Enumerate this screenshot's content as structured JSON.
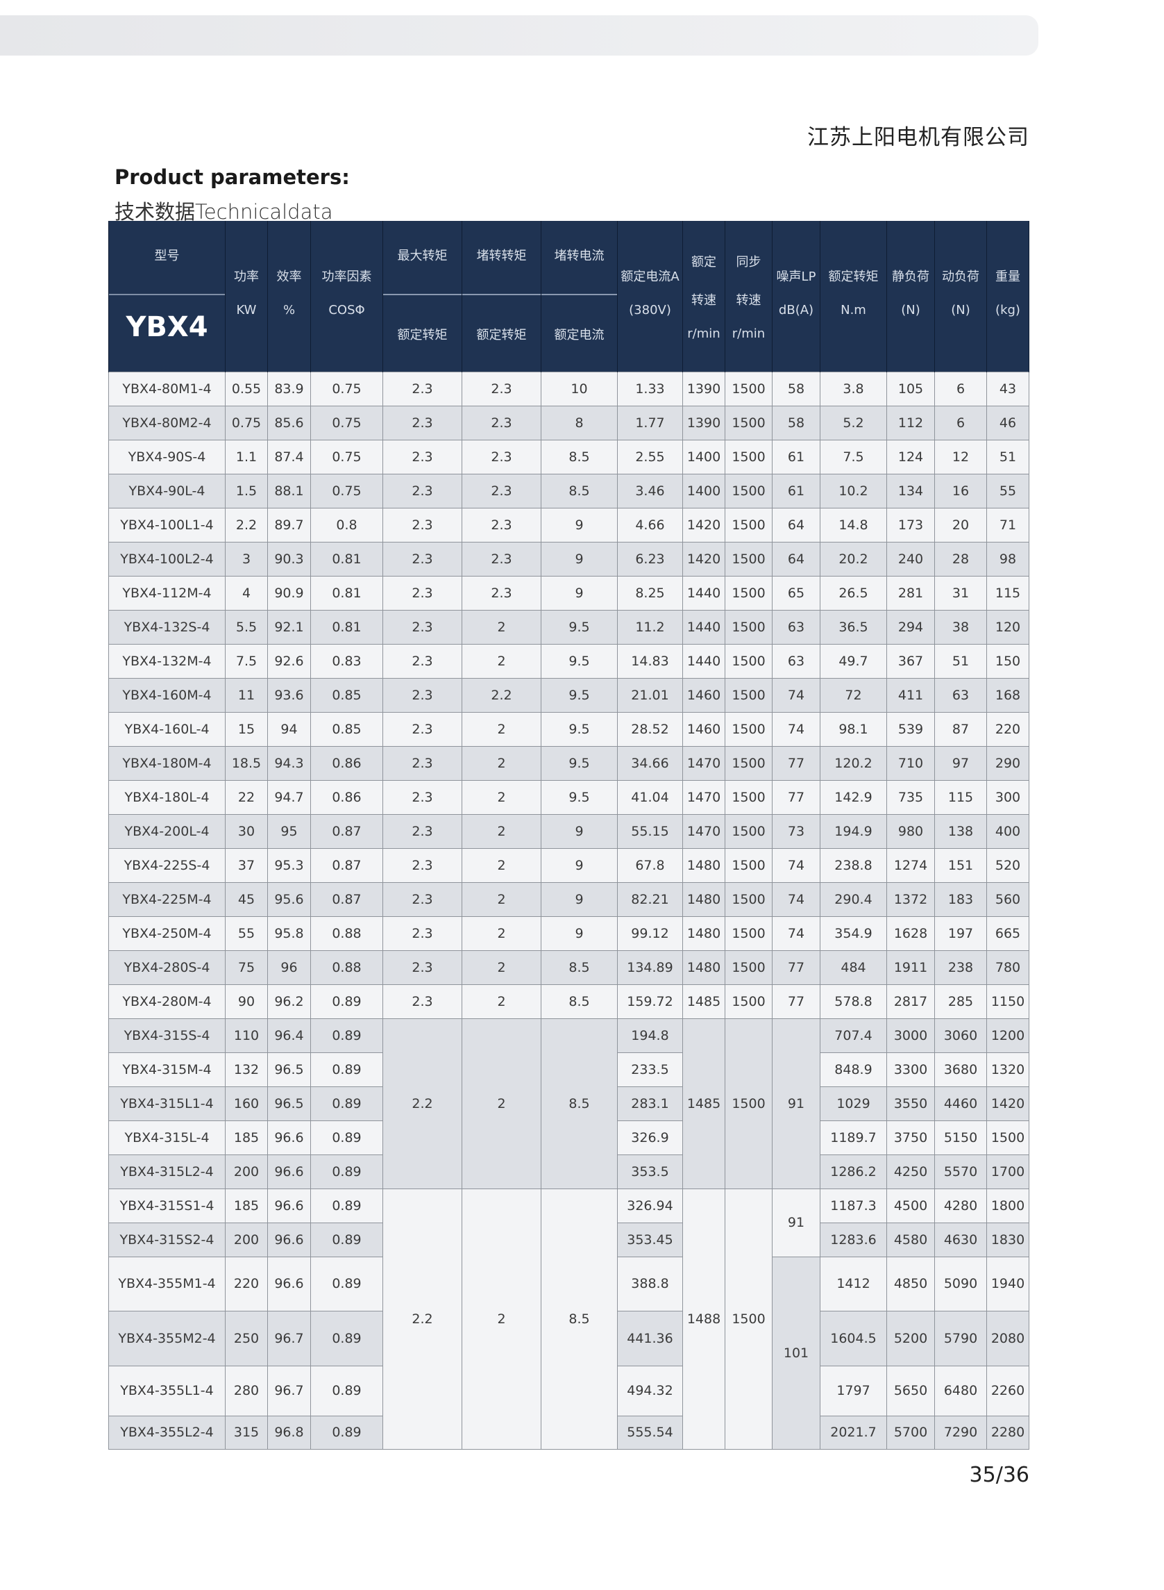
{
  "company": "江苏上阳电机有限公司",
  "title": "Product parameters:",
  "subtitle": "技术数据Technicaldata",
  "page_number": "35/36",
  "colors": {
    "header_bg": "#1f3352",
    "row_light": "#f3f4f6",
    "row_gray": "#dde0e5"
  },
  "header": {
    "model": "型号",
    "series": "YBX4",
    "kw": [
      "功率",
      "KW"
    ],
    "eff": [
      "效率",
      "%"
    ],
    "cos": [
      "功率因素",
      "COSΦ"
    ],
    "tmax": [
      "最大转矩",
      "额定转矩"
    ],
    "tlock": [
      "堵转转矩",
      "额定转矩"
    ],
    "ilock": [
      "堵转电流",
      "额定电流"
    ],
    "current": [
      "额定电流A",
      "(380V)"
    ],
    "speed": [
      "额定",
      "转速",
      "r/min"
    ],
    "sync": [
      "同步",
      "转速",
      "r/min"
    ],
    "noise": [
      "噪声LP",
      "dB(A)"
    ],
    "torque": [
      "额定转矩",
      "N.m"
    ],
    "static": [
      "静负荷",
      "(N)"
    ],
    "dynamic": [
      "动负荷",
      "(N)"
    ],
    "weight": [
      "重量",
      "(kg)"
    ]
  },
  "rows": [
    {
      "model": "YBX4-80M1-4",
      "kw": "0.55",
      "eff": "83.9",
      "cos": "0.75",
      "tmax": "2.3",
      "tlock": "2.3",
      "ilock": "10",
      "current": "1.33",
      "speed": "1390",
      "sync": "1500",
      "noise": "58",
      "torque": "3.8",
      "static": "105",
      "dynamic": "6",
      "weight": "43"
    },
    {
      "model": "YBX4-80M2-4",
      "kw": "0.75",
      "eff": "85.6",
      "cos": "0.75",
      "tmax": "2.3",
      "tlock": "2.3",
      "ilock": "8",
      "current": "1.77",
      "speed": "1390",
      "sync": "1500",
      "noise": "58",
      "torque": "5.2",
      "static": "112",
      "dynamic": "6",
      "weight": "46"
    },
    {
      "model": "YBX4-90S-4",
      "kw": "1.1",
      "eff": "87.4",
      "cos": "0.75",
      "tmax": "2.3",
      "tlock": "2.3",
      "ilock": "8.5",
      "current": "2.55",
      "speed": "1400",
      "sync": "1500",
      "noise": "61",
      "torque": "7.5",
      "static": "124",
      "dynamic": "12",
      "weight": "51"
    },
    {
      "model": "YBX4-90L-4",
      "kw": "1.5",
      "eff": "88.1",
      "cos": "0.75",
      "tmax": "2.3",
      "tlock": "2.3",
      "ilock": "8.5",
      "current": "3.46",
      "speed": "1400",
      "sync": "1500",
      "noise": "61",
      "torque": "10.2",
      "static": "134",
      "dynamic": "16",
      "weight": "55"
    },
    {
      "model": "YBX4-100L1-4",
      "kw": "2.2",
      "eff": "89.7",
      "cos": "0.8",
      "tmax": "2.3",
      "tlock": "2.3",
      "ilock": "9",
      "current": "4.66",
      "speed": "1420",
      "sync": "1500",
      "noise": "64",
      "torque": "14.8",
      "static": "173",
      "dynamic": "20",
      "weight": "71"
    },
    {
      "model": "YBX4-100L2-4",
      "kw": "3",
      "eff": "90.3",
      "cos": "0.81",
      "tmax": "2.3",
      "tlock": "2.3",
      "ilock": "9",
      "current": "6.23",
      "speed": "1420",
      "sync": "1500",
      "noise": "64",
      "torque": "20.2",
      "static": "240",
      "dynamic": "28",
      "weight": "98"
    },
    {
      "model": "YBX4-112M-4",
      "kw": "4",
      "eff": "90.9",
      "cos": "0.81",
      "tmax": "2.3",
      "tlock": "2.3",
      "ilock": "9",
      "current": "8.25",
      "speed": "1440",
      "sync": "1500",
      "noise": "65",
      "torque": "26.5",
      "static": "281",
      "dynamic": "31",
      "weight": "115"
    },
    {
      "model": "YBX4-132S-4",
      "kw": "5.5",
      "eff": "92.1",
      "cos": "0.81",
      "tmax": "2.3",
      "tlock": "2",
      "ilock": "9.5",
      "current": "11.2",
      "speed": "1440",
      "sync": "1500",
      "noise": "63",
      "torque": "36.5",
      "static": "294",
      "dynamic": "38",
      "weight": "120"
    },
    {
      "model": "YBX4-132M-4",
      "kw": "7.5",
      "eff": "92.6",
      "cos": "0.83",
      "tmax": "2.3",
      "tlock": "2",
      "ilock": "9.5",
      "current": "14.83",
      "speed": "1440",
      "sync": "1500",
      "noise": "63",
      "torque": "49.7",
      "static": "367",
      "dynamic": "51",
      "weight": "150"
    },
    {
      "model": "YBX4-160M-4",
      "kw": "11",
      "eff": "93.6",
      "cos": "0.85",
      "tmax": "2.3",
      "tlock": "2.2",
      "ilock": "9.5",
      "current": "21.01",
      "speed": "1460",
      "sync": "1500",
      "noise": "74",
      "torque": "72",
      "static": "411",
      "dynamic": "63",
      "weight": "168"
    },
    {
      "model": "YBX4-160L-4",
      "kw": "15",
      "eff": "94",
      "cos": "0.85",
      "tmax": "2.3",
      "tlock": "2",
      "ilock": "9.5",
      "current": "28.52",
      "speed": "1460",
      "sync": "1500",
      "noise": "74",
      "torque": "98.1",
      "static": "539",
      "dynamic": "87",
      "weight": "220"
    },
    {
      "model": "YBX4-180M-4",
      "kw": "18.5",
      "eff": "94.3",
      "cos": "0.86",
      "tmax": "2.3",
      "tlock": "2",
      "ilock": "9.5",
      "current": "34.66",
      "speed": "1470",
      "sync": "1500",
      "noise": "77",
      "torque": "120.2",
      "static": "710",
      "dynamic": "97",
      "weight": "290"
    },
    {
      "model": "YBX4-180L-4",
      "kw": "22",
      "eff": "94.7",
      "cos": "0.86",
      "tmax": "2.3",
      "tlock": "2",
      "ilock": "9.5",
      "current": "41.04",
      "speed": "1470",
      "sync": "1500",
      "noise": "77",
      "torque": "142.9",
      "static": "735",
      "dynamic": "115",
      "weight": "300"
    },
    {
      "model": "YBX4-200L-4",
      "kw": "30",
      "eff": "95",
      "cos": "0.87",
      "tmax": "2.3",
      "tlock": "2",
      "ilock": "9",
      "current": "55.15",
      "speed": "1470",
      "sync": "1500",
      "noise": "73",
      "torque": "194.9",
      "static": "980",
      "dynamic": "138",
      "weight": "400"
    },
    {
      "model": "YBX4-225S-4",
      "kw": "37",
      "eff": "95.3",
      "cos": "0.87",
      "tmax": "2.3",
      "tlock": "2",
      "ilock": "9",
      "current": "67.8",
      "speed": "1480",
      "sync": "1500",
      "noise": "74",
      "torque": "238.8",
      "static": "1274",
      "dynamic": "151",
      "weight": "520"
    },
    {
      "model": "YBX4-225M-4",
      "kw": "45",
      "eff": "95.6",
      "cos": "0.87",
      "tmax": "2.3",
      "tlock": "2",
      "ilock": "9",
      "current": "82.21",
      "speed": "1480",
      "sync": "1500",
      "noise": "74",
      "torque": "290.4",
      "static": "1372",
      "dynamic": "183",
      "weight": "560"
    },
    {
      "model": "YBX4-250M-4",
      "kw": "55",
      "eff": "95.8",
      "cos": "0.88",
      "tmax": "2.3",
      "tlock": "2",
      "ilock": "9",
      "current": "99.12",
      "speed": "1480",
      "sync": "1500",
      "noise": "74",
      "torque": "354.9",
      "static": "1628",
      "dynamic": "197",
      "weight": "665"
    },
    {
      "model": "YBX4-280S-4",
      "kw": "75",
      "eff": "96",
      "cos": "0.88",
      "tmax": "2.3",
      "tlock": "2",
      "ilock": "8.5",
      "current": "134.89",
      "speed": "1480",
      "sync": "1500",
      "noise": "77",
      "torque": "484",
      "static": "1911",
      "dynamic": "238",
      "weight": "780"
    },
    {
      "model": "YBX4-280M-4",
      "kw": "90",
      "eff": "96.2",
      "cos": "0.89",
      "tmax": "2.3",
      "tlock": "2",
      "ilock": "8.5",
      "current": "159.72",
      "speed": "1485",
      "sync": "1500",
      "noise": "77",
      "torque": "578.8",
      "static": "2817",
      "dynamic": "285",
      "weight": "1150"
    },
    {
      "model": "YBX4-315S-4",
      "kw": "110",
      "eff": "96.4",
      "cos": "0.89",
      "current": "194.8",
      "torque": "707.4",
      "static": "3000",
      "dynamic": "3060",
      "weight": "1200"
    },
    {
      "model": "YBX4-315M-4",
      "kw": "132",
      "eff": "96.5",
      "cos": "0.89",
      "current": "233.5",
      "torque": "848.9",
      "static": "3300",
      "dynamic": "3680",
      "weight": "1320"
    },
    {
      "model": "YBX4-315L1-4",
      "kw": "160",
      "eff": "96.5",
      "cos": "0.89",
      "current": "283.1",
      "torque": "1029",
      "static": "3550",
      "dynamic": "4460",
      "weight": "1420"
    },
    {
      "model": "YBX4-315L-4",
      "kw": "185",
      "eff": "96.6",
      "cos": "0.89",
      "current": "326.9",
      "torque": "1189.7",
      "static": "3750",
      "dynamic": "5150",
      "weight": "1500"
    },
    {
      "model": "YBX4-315L2-4",
      "kw": "200",
      "eff": "96.6",
      "cos": "0.89",
      "current": "353.5",
      "torque": "1286.2",
      "static": "4250",
      "dynamic": "5570",
      "weight": "1700"
    },
    {
      "model": "YBX4-315S1-4",
      "kw": "185",
      "eff": "96.6",
      "cos": "0.89",
      "current": "326.94",
      "torque": "1187.3",
      "static": "4500",
      "dynamic": "4280",
      "weight": "1800"
    },
    {
      "model": "YBX4-315S2-4",
      "kw": "200",
      "eff": "96.6",
      "cos": "0.89",
      "current": "353.45",
      "torque": "1283.6",
      "static": "4580",
      "dynamic": "4630",
      "weight": "1830"
    },
    {
      "model": "YBX4-355M1-4",
      "kw": "220",
      "eff": "96.6",
      "cos": "0.89",
      "current": "388.8",
      "torque": "1412",
      "static": "4850",
      "dynamic": "5090",
      "weight": "1940"
    },
    {
      "model": "YBX4-355M2-4",
      "kw": "250",
      "eff": "96.7",
      "cos": "0.89",
      "current": "441.36",
      "torque": "1604.5",
      "static": "5200",
      "dynamic": "5790",
      "weight": "2080"
    },
    {
      "model": "YBX4-355L1-4",
      "kw": "280",
      "eff": "96.7",
      "cos": "0.89",
      "current": "494.32",
      "torque": "1797",
      "static": "5650",
      "dynamic": "6480",
      "weight": "2260"
    },
    {
      "model": "YBX4-355L2-4",
      "kw": "315",
      "eff": "96.8",
      "cos": "0.89",
      "current": "555.54",
      "torque": "2021.7",
      "static": "5700",
      "dynamic": "7290",
      "weight": "2280"
    }
  ],
  "merged": [
    {
      "tmax": "2.2",
      "tlock": "2",
      "ilock": "8.5",
      "speed": "1485",
      "sync": "1500",
      "noise": "91"
    },
    {
      "tmax": "2.2",
      "tlock": "2",
      "ilock": "8.5",
      "speed": "1488",
      "sync": "1500",
      "noise_a": "91",
      "noise_b": "101"
    }
  ]
}
